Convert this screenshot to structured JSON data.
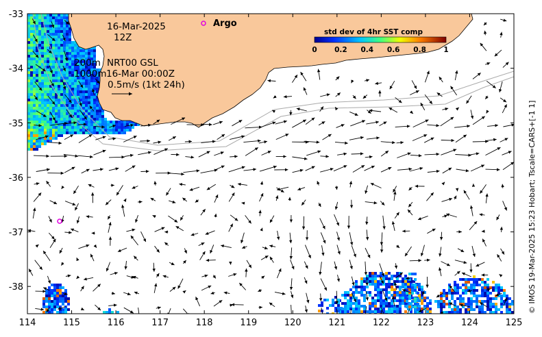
{
  "map": {
    "date_line": "16-Mar-2025",
    "hour_line": "12Z",
    "depth_200": "200m",
    "product": "NRT00 GSL",
    "depth_1000": "1000m",
    "analysis_time": "16-Mar 00:00Z",
    "scale_label": "0.5m/s (1kt 24h)",
    "argo_label": "Argo",
    "credit": "© IMOS 19-Mar-2025 15:23 Hobart; Tscale=CARS+[-1 1]",
    "colors": {
      "land": "#f9c89b",
      "argo": "#e000e0",
      "isobath": "#aaaaaa"
    }
  },
  "axes": {
    "x_ticks": [
      "114",
      "115",
      "116",
      "117",
      "118",
      "119",
      "120",
      "121",
      "122",
      "123",
      "124",
      "125"
    ],
    "y_ticks": [
      "-33",
      "-34",
      "-35",
      "-36",
      "-37",
      "-38"
    ],
    "lon_range": [
      114,
      125
    ],
    "lat_range": [
      -38.5,
      -33
    ]
  },
  "colorbar": {
    "title": "std dev of 4hr SST comp",
    "ticks": [
      "0",
      "0.2",
      "0.4",
      "0.6",
      "0.8",
      "1"
    ],
    "range": [
      0,
      1
    ]
  },
  "argo_floats": [
    {
      "lon": 118.0,
      "lat": -33.18
    },
    {
      "lon": 114.72,
      "lat": -36.8
    }
  ]
}
